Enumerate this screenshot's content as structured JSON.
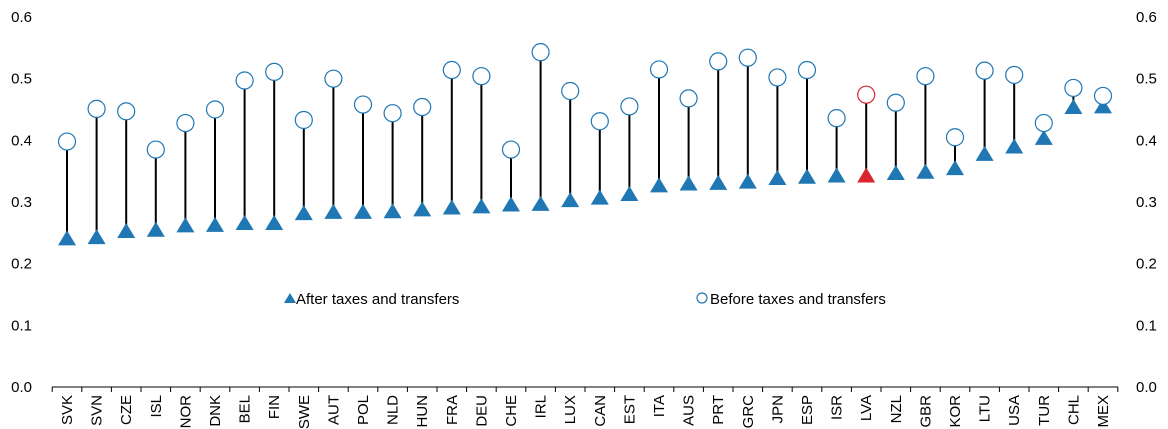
{
  "chart_data": {
    "type": "dot-range",
    "ylim": [
      0.0,
      0.6
    ],
    "yticks": [
      "0.0",
      "0.1",
      "0.2",
      "0.3",
      "0.4",
      "0.5",
      "0.6"
    ],
    "categories": [
      "SVK",
      "SVN",
      "CZE",
      "ISL",
      "NOR",
      "DNK",
      "BEL",
      "FIN",
      "SWE",
      "AUT",
      "POL",
      "NLD",
      "HUN",
      "FRA",
      "DEU",
      "CHE",
      "IRL",
      "LUX",
      "CAN",
      "EST",
      "ITA",
      "AUS",
      "PRT",
      "GRC",
      "JPN",
      "ESP",
      "ISR",
      "LVA",
      "NZL",
      "GBR",
      "KOR",
      "LTU",
      "USA",
      "TUR",
      "CHL",
      "MEX"
    ],
    "series": [
      {
        "name": "After taxes and transfers",
        "marker": "triangle",
        "color": "#1f77b4",
        "values": [
          0.241,
          0.243,
          0.253,
          0.255,
          0.262,
          0.263,
          0.266,
          0.266,
          0.282,
          0.284,
          0.284,
          0.285,
          0.288,
          0.291,
          0.293,
          0.296,
          0.297,
          0.303,
          0.307,
          0.313,
          0.327,
          0.33,
          0.331,
          0.333,
          0.339,
          0.341,
          0.343,
          0.343,
          0.347,
          0.349,
          0.355,
          0.378,
          0.39,
          0.404,
          0.454,
          0.455
        ]
      },
      {
        "name": "Before taxes and transfers",
        "marker": "circle",
        "color": "#1f77b4",
        "values": [
          0.398,
          0.451,
          0.447,
          0.385,
          0.428,
          0.45,
          0.497,
          0.511,
          0.433,
          0.5,
          0.458,
          0.444,
          0.454,
          0.514,
          0.504,
          0.385,
          0.543,
          0.48,
          0.431,
          0.455,
          0.515,
          0.468,
          0.528,
          0.534,
          0.502,
          0.514,
          0.436,
          0.474,
          0.461,
          0.504,
          0.405,
          0.513,
          0.506,
          0.428,
          0.485,
          0.472
        ]
      }
    ],
    "highlight": {
      "category": "LVA",
      "color": "#d9262e"
    },
    "legend": [
      {
        "label": "After taxes and transfers",
        "marker": "triangle"
      },
      {
        "label": "Before taxes and transfers",
        "marker": "circle"
      }
    ],
    "legend_position": "inside-middle",
    "grid": false
  }
}
